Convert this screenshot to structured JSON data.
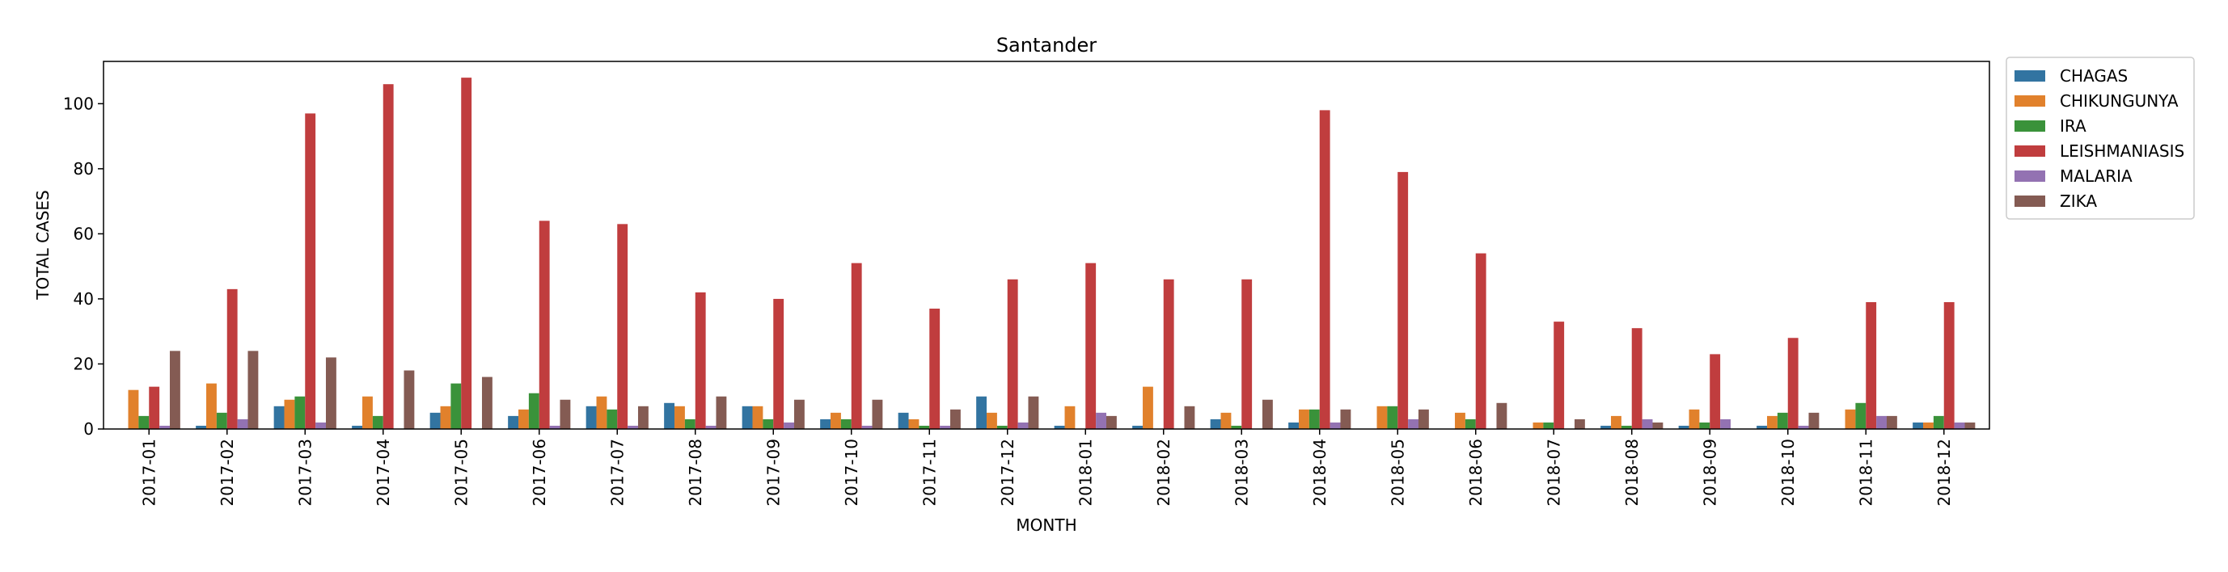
{
  "chart_data": {
    "type": "bar",
    "title": "Santander",
    "xlabel": "MONTH",
    "ylabel": "TOTAL CASES",
    "ylim": [
      0,
      113
    ],
    "yticks": [
      0,
      20,
      40,
      60,
      80,
      100
    ],
    "grid": false,
    "legend_position": "outside-top-right",
    "categories": [
      "2017-01",
      "2017-02",
      "2017-03",
      "2017-04",
      "2017-05",
      "2017-06",
      "2017-07",
      "2017-08",
      "2017-09",
      "2017-10",
      "2017-11",
      "2017-12",
      "2018-01",
      "2018-02",
      "2018-03",
      "2018-04",
      "2018-05",
      "2018-06",
      "2018-07",
      "2018-08",
      "2018-09",
      "2018-10",
      "2018-11",
      "2018-12"
    ],
    "series": [
      {
        "name": "CHAGAS",
        "color": "#3274a1",
        "values": [
          0,
          1,
          7,
          1,
          5,
          4,
          7,
          8,
          7,
          3,
          5,
          10,
          1,
          1,
          3,
          2,
          0,
          0,
          0,
          1,
          1,
          1,
          0,
          2
        ]
      },
      {
        "name": "CHIKUNGUNYA",
        "color": "#e1812c",
        "values": [
          12,
          14,
          9,
          10,
          7,
          6,
          10,
          7,
          7,
          5,
          3,
          5,
          7,
          13,
          5,
          6,
          7,
          5,
          2,
          4,
          6,
          4,
          6,
          2
        ]
      },
      {
        "name": "IRA",
        "color": "#3a923a",
        "values": [
          4,
          5,
          10,
          4,
          14,
          11,
          6,
          3,
          3,
          3,
          1,
          1,
          0,
          0,
          1,
          6,
          7,
          3,
          2,
          1,
          2,
          5,
          8,
          4
        ]
      },
      {
        "name": "LEISHMANIASIS",
        "color": "#c03d3e",
        "values": [
          13,
          43,
          97,
          106,
          108,
          64,
          63,
          42,
          40,
          51,
          37,
          46,
          51,
          46,
          46,
          98,
          79,
          54,
          33,
          31,
          23,
          28,
          39,
          39
        ]
      },
      {
        "name": "MALARIA",
        "color": "#9372b2",
        "values": [
          1,
          3,
          2,
          0,
          0,
          1,
          1,
          1,
          2,
          1,
          1,
          2,
          5,
          0,
          0,
          2,
          3,
          0,
          0,
          3,
          3,
          1,
          4,
          2
        ]
      },
      {
        "name": "ZIKA",
        "color": "#845b53",
        "values": [
          24,
          24,
          22,
          18,
          16,
          9,
          7,
          10,
          9,
          9,
          6,
          10,
          4,
          7,
          9,
          6,
          6,
          8,
          3,
          2,
          0,
          5,
          4,
          2
        ]
      }
    ]
  }
}
